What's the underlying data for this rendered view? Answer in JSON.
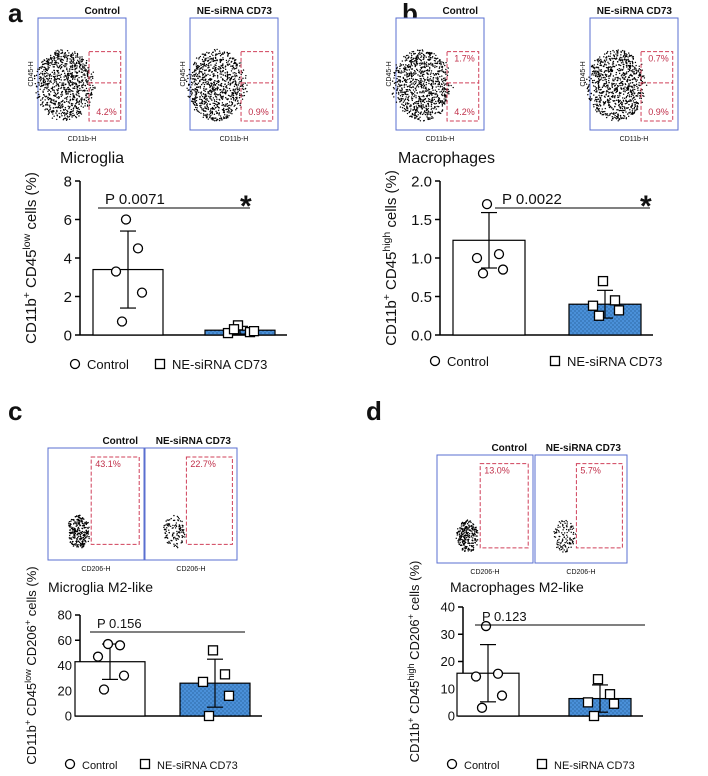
{
  "chart_data": [
    {
      "type": "bar",
      "panel": "a",
      "subtitle": "Microglia",
      "flow": {
        "labels": [
          "Control",
          "NE-siRNA CD73"
        ],
        "xlabel": "CD11b-H",
        "ylabel": "CD45-H",
        "gates": [
          [
            "4.2%"
          ],
          [
            "0.9%"
          ]
        ]
      },
      "ylabel": [
        "CD11b",
        "+",
        " CD45",
        "low",
        " cells (%)"
      ],
      "ylim": [
        0,
        8
      ],
      "yticks": [
        0,
        2,
        4,
        6,
        8
      ],
      "annotation": {
        "text": "P 0.0071",
        "star": "*"
      },
      "series": [
        {
          "name": "Control",
          "color": "#ffffff",
          "marker": "circle",
          "values": [
            3.4
          ],
          "errors": [
            2.0
          ],
          "points": [
            6.0,
            4.5,
            3.3,
            2.2,
            0.7
          ]
        },
        {
          "name": "NE-siRNA CD73",
          "color": "#4a90d9",
          "marker": "square",
          "values": [
            0.25
          ],
          "errors": [
            0.2
          ],
          "points": [
            0.5,
            0.15,
            0.1,
            0.2,
            0.3
          ]
        }
      ]
    },
    {
      "type": "bar",
      "panel": "b",
      "subtitle": "Macrophages",
      "flow": {
        "labels": [
          "Control",
          "NE-siRNA CD73"
        ],
        "xlabel": "CD11b-H",
        "ylabel": "CD45-H",
        "gates": [
          [
            "1.7%",
            "4.2%"
          ],
          [
            "0.7%",
            "0.9%"
          ]
        ]
      },
      "ylabel": [
        "CD11b",
        "+",
        " CD45",
        "high",
        " cells (%)"
      ],
      "ylim": [
        0,
        2
      ],
      "yticks": [
        {
          "value": 0,
          "label": "0.0"
        },
        0.5,
        {
          "value": 1,
          "label": "1.0"
        },
        1.5,
        {
          "value": 2,
          "label": "2.0"
        }
      ],
      "annotation": {
        "text": "P 0.0022",
        "star": "*"
      },
      "series": [
        {
          "name": "Control",
          "color": "#ffffff",
          "marker": "circle",
          "values": [
            1.23
          ],
          "errors": [
            0.36
          ],
          "points": [
            1.7,
            1.05,
            1.0,
            0.85,
            0.8
          ]
        },
        {
          "name": "NE-siRNA CD73",
          "color": "#4a90d9",
          "marker": "square",
          "values": [
            0.4
          ],
          "errors": [
            0.18
          ],
          "points": [
            0.7,
            0.45,
            0.38,
            0.32,
            0.25
          ]
        }
      ]
    },
    {
      "type": "bar",
      "panel": "c",
      "subtitle": "Microglia M2-like",
      "flow": {
        "labels": [
          "Control",
          "NE-siRNA CD73"
        ],
        "xlabel": "CD206-H",
        "gates": [
          [
            "43.1%"
          ],
          [
            "22.7%"
          ]
        ]
      },
      "ylabel": [
        "CD11b",
        "+",
        " CD45",
        "low",
        " CD206",
        "+",
        " cells (%)"
      ],
      "ylim": [
        0,
        80
      ],
      "yticks": [
        0,
        20,
        40,
        60,
        80
      ],
      "annotation": {
        "text": "P 0.156"
      },
      "series": [
        {
          "name": "Control",
          "color": "#ffffff",
          "marker": "circle",
          "values": [
            43
          ],
          "errors": [
            14
          ],
          "points": [
            57,
            56,
            47,
            32,
            21
          ]
        },
        {
          "name": "NE-siRNA CD73",
          "color": "#4a90d9",
          "marker": "square",
          "values": [
            26
          ],
          "errors": [
            19
          ],
          "points": [
            52,
            33,
            27,
            16,
            0
          ]
        }
      ]
    },
    {
      "type": "bar",
      "panel": "d",
      "subtitle": "Macrophages M2-like",
      "flow": {
        "labels": [
          "Control",
          "NE-siRNA CD73"
        ],
        "xlabel": "CD206-H",
        "gates": [
          [
            "13.0%"
          ],
          [
            "5.7%"
          ]
        ]
      },
      "ylabel": [
        "CD11b",
        "+",
        " CD45",
        "high",
        " CD206",
        "+",
        " cells (%)"
      ],
      "ylim": [
        0,
        40
      ],
      "yticks": [
        0,
        10,
        20,
        30,
        40
      ],
      "annotation": {
        "text": "P 0.123"
      },
      "series": [
        {
          "name": "Control",
          "color": "#ffffff",
          "marker": "circle",
          "values": [
            15.7
          ],
          "errors": [
            10.5
          ],
          "points": [
            33,
            15.5,
            14.5,
            7.5,
            3
          ]
        },
        {
          "name": "NE-siRNA CD73",
          "color": "#4a90d9",
          "marker": "square",
          "values": [
            6.4
          ],
          "errors": [
            5
          ],
          "points": [
            13.5,
            8,
            5,
            4.5,
            0
          ]
        }
      ]
    }
  ]
}
